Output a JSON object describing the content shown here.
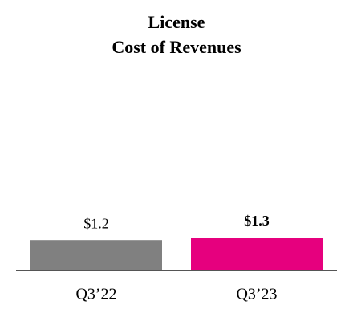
{
  "chart_data": {
    "type": "bar",
    "title": "License",
    "subtitle": "Cost of Revenues",
    "categories": [
      "Q3’22",
      "Q3’23"
    ],
    "values": [
      1.2,
      1.3
    ],
    "value_labels": [
      "$1.2",
      "$1.3"
    ],
    "colors": [
      "#808080",
      "#e6007e"
    ],
    "value_label_bold": [
      false,
      true
    ]
  }
}
